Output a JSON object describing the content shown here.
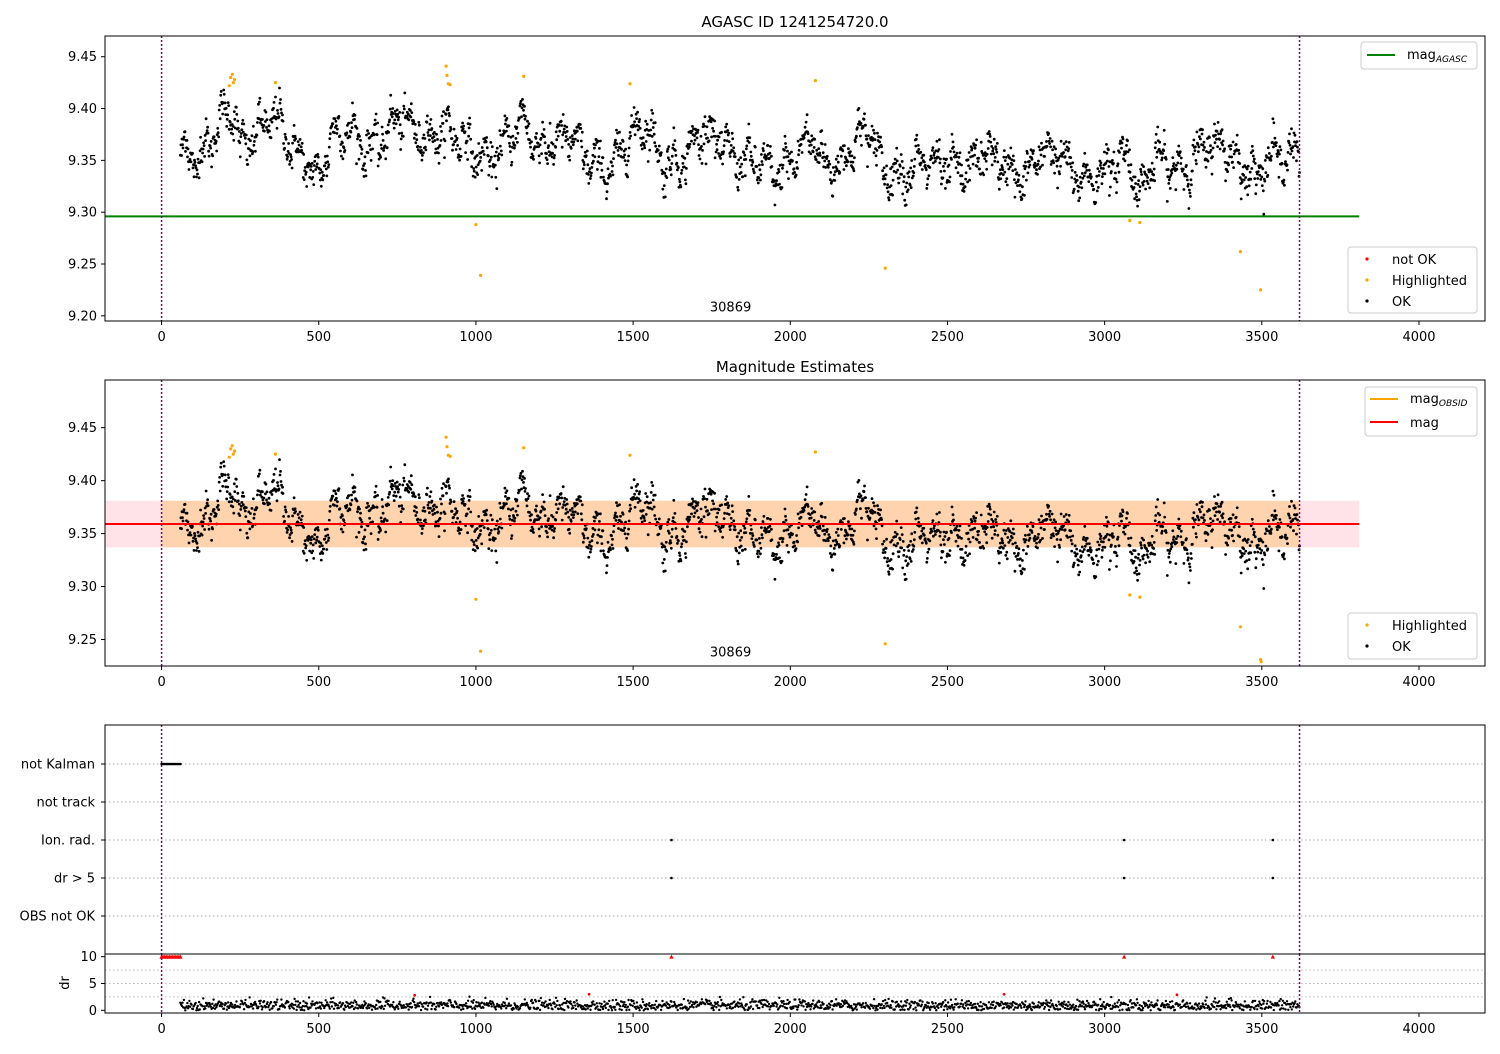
{
  "chart_data": [
    {
      "type": "scatter",
      "title": "AGASC ID 1241254720.0",
      "xlim": [
        -180,
        4210
      ],
      "ylim": [
        9.195,
        9.47
      ],
      "x_ticks": [
        0,
        500,
        1000,
        1500,
        2000,
        2500,
        3000,
        3500,
        4000
      ],
      "y_ticks": [
        9.2,
        9.25,
        9.3,
        9.35,
        9.4,
        9.45
      ],
      "annotation": {
        "text": "30869",
        "x": 1810,
        "y": 9.204
      },
      "vlines": [
        0,
        3620
      ],
      "hlines": [
        {
          "name": "mag$_{AGASC}$",
          "label_main": "mag",
          "label_sub": "AGASC",
          "y": 9.296,
          "x_range": [
            -180,
            3810
          ],
          "color": "#008000"
        }
      ],
      "series": [
        {
          "name": "not OK",
          "color": "#ff0000",
          "x": [],
          "y": []
        },
        {
          "name": "Highlighted",
          "color": "#ffa500",
          "x": [
            215,
            220,
            225,
            228,
            232,
            362,
            905,
            908,
            912,
            918,
            1000,
            1015,
            1152,
            1490,
            2080,
            2302,
            3080,
            3112,
            3432,
            3496
          ],
          "y": [
            9.422,
            9.43,
            9.433,
            9.425,
            9.428,
            9.425,
            9.441,
            9.432,
            9.424,
            9.423,
            9.288,
            9.239,
            9.431,
            9.424,
            9.427,
            9.246,
            9.292,
            9.29,
            9.262,
            9.225
          ]
        },
        {
          "name": "OK",
          "color": "#000000",
          "x": [],
          "y": []
        }
      ],
      "ok_segments": [
        [
          60,
          9.36
        ],
        [
          120,
          9.35
        ],
        [
          200,
          9.395
        ],
        [
          230,
          9.4
        ],
        [
          250,
          9.36
        ],
        [
          300,
          9.375
        ],
        [
          360,
          9.395
        ],
        [
          420,
          9.36
        ],
        [
          470,
          9.345
        ],
        [
          500,
          9.33
        ],
        [
          540,
          9.375
        ],
        [
          600,
          9.38
        ],
        [
          650,
          9.36
        ],
        [
          700,
          9.37
        ],
        [
          760,
          9.395
        ],
        [
          800,
          9.38
        ],
        [
          850,
          9.37
        ],
        [
          900,
          9.38
        ],
        [
          960,
          9.37
        ],
        [
          1000,
          9.355
        ],
        [
          1050,
          9.35
        ],
        [
          1100,
          9.37
        ],
        [
          1150,
          9.39
        ],
        [
          1200,
          9.36
        ],
        [
          1260,
          9.37
        ],
        [
          1300,
          9.375
        ],
        [
          1360,
          9.35
        ],
        [
          1430,
          9.34
        ],
        [
          1480,
          9.37
        ],
        [
          1540,
          9.385
        ],
        [
          1600,
          9.345
        ],
        [
          1660,
          9.35
        ],
        [
          1720,
          9.38
        ],
        [
          1770,
          9.37
        ],
        [
          1830,
          9.35
        ],
        [
          1900,
          9.35
        ],
        [
          1960,
          9.335
        ],
        [
          2020,
          9.355
        ],
        [
          2070,
          9.375
        ],
        [
          2110,
          9.345
        ],
        [
          2160,
          9.345
        ],
        [
          2210,
          9.37
        ],
        [
          2250,
          9.38
        ],
        [
          2300,
          9.34
        ],
        [
          2360,
          9.335
        ],
        [
          2420,
          9.35
        ],
        [
          2480,
          9.345
        ],
        [
          2560,
          9.34
        ],
        [
          2620,
          9.36
        ],
        [
          2680,
          9.345
        ],
        [
          2740,
          9.33
        ],
        [
          2800,
          9.36
        ],
        [
          2860,
          9.355
        ],
        [
          2920,
          9.33
        ],
        [
          2980,
          9.335
        ],
        [
          3040,
          9.35
        ],
        [
          3080,
          9.355
        ],
        [
          3110,
          9.315
        ],
        [
          3160,
          9.355
        ],
        [
          3200,
          9.345
        ],
        [
          3260,
          9.34
        ],
        [
          3320,
          9.365
        ],
        [
          3380,
          9.365
        ],
        [
          3430,
          9.345
        ],
        [
          3480,
          9.335
        ],
        [
          3530,
          9.355
        ],
        [
          3620,
          9.355
        ]
      ],
      "legend": [
        {
          "position": "top-right",
          "items": [
            "mag$_{AGASC}$"
          ]
        },
        {
          "position": "lower-right",
          "items": [
            "not OK",
            "Highlighted",
            "OK"
          ]
        }
      ]
    },
    {
      "type": "scatter",
      "title": "Magnitude Estimates",
      "xlim": [
        -180,
        4210
      ],
      "ylim": [
        9.225,
        9.495
      ],
      "x_ticks": [
        0,
        500,
        1000,
        1500,
        2000,
        2500,
        3000,
        3500,
        4000
      ],
      "y_ticks": [
        9.25,
        9.3,
        9.35,
        9.4,
        9.45
      ],
      "annotation": {
        "text": "30869",
        "x": 1810,
        "y": 9.234
      },
      "vlines": [
        0,
        3620
      ],
      "hlines": [
        {
          "name": "mag$_{OBSID}$",
          "label_main": "mag",
          "label_sub": "OBSID",
          "y": 9.359,
          "x_range": [
            0,
            3620
          ],
          "color": "#ffa500"
        },
        {
          "name": "mag",
          "label_main": "mag",
          "label_sub": "",
          "y": 9.359,
          "x_range": [
            -180,
            3810
          ],
          "color": "#ff0000"
        }
      ],
      "bands": [
        {
          "y_range": [
            9.337,
            9.381
          ],
          "x_range": [
            -180,
            3810
          ],
          "color": "#ffc0cb"
        },
        {
          "y_range": [
            9.337,
            9.381
          ],
          "x_range": [
            0,
            3620
          ],
          "color": "#ffa500"
        }
      ],
      "series": [
        {
          "name": "Highlighted",
          "color": "#ffa500",
          "x": [
            215,
            220,
            225,
            228,
            232,
            362,
            905,
            908,
            912,
            918,
            1000,
            1015,
            1152,
            1490,
            2080,
            2302,
            3080,
            3112,
            3432,
            3496,
            3498
          ],
          "y": [
            9.422,
            9.43,
            9.433,
            9.425,
            9.428,
            9.425,
            9.441,
            9.432,
            9.424,
            9.423,
            9.288,
            9.239,
            9.431,
            9.424,
            9.427,
            9.246,
            9.292,
            9.29,
            9.262,
            9.231,
            9.229
          ]
        },
        {
          "name": "OK",
          "color": "#000000",
          "x": [],
          "y": []
        }
      ],
      "legend": [
        {
          "position": "top-right",
          "items": [
            "mag$_{OBSID}$",
            "mag"
          ]
        },
        {
          "position": "lower-right",
          "items": [
            "Highlighted",
            "OK"
          ]
        }
      ]
    },
    {
      "type": "scatter",
      "xlim": [
        -180,
        4210
      ],
      "categories": [
        "not Kalman",
        "not track",
        "Ion. rad.",
        "dr > 5",
        "OBS not OK"
      ],
      "vlines": [
        0,
        3620
      ],
      "flags": [
        {
          "category": "not Kalman",
          "x": [
            0,
            5,
            10,
            15,
            20,
            25,
            30,
            35,
            40,
            45,
            50,
            55,
            60
          ]
        },
        {
          "category": "not track",
          "x": []
        },
        {
          "category": "Ion. rad.",
          "x": [
            1622,
            3062,
            3535
          ]
        },
        {
          "category": "dr > 5",
          "x": [
            1622,
            3062,
            3535
          ]
        },
        {
          "category": "OBS not OK",
          "x": []
        }
      ]
    },
    {
      "type": "scatter",
      "ylabel": "dr",
      "xlim": [
        -180,
        4210
      ],
      "ylim": [
        -0.5,
        10.5
      ],
      "y_ticks": [
        0,
        5,
        10
      ],
      "x_ticks": [
        0,
        500,
        1000,
        1500,
        2000,
        2500,
        3000,
        3500,
        4000
      ],
      "vlines": [
        0,
        3620
      ],
      "clipped_markers": {
        "color": "#ff0000",
        "y": 10,
        "x": [
          0,
          5,
          10,
          15,
          20,
          25,
          30,
          35,
          40,
          45,
          50,
          55,
          60,
          1622,
          3062,
          3535
        ]
      },
      "red_points": {
        "x": [
          805,
          1360,
          2680,
          3230
        ],
        "y": [
          2.8,
          3.0,
          3.0,
          2.9
        ]
      }
    }
  ]
}
